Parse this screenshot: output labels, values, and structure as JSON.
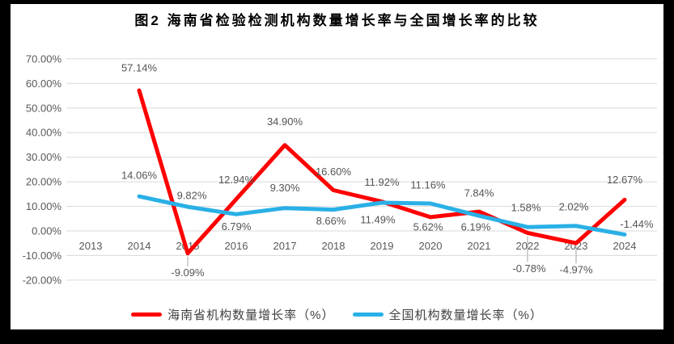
{
  "colors": {
    "hainan_red": "#FE0000",
    "national_blue": "#29B0E6",
    "gridline": "#D9D9D9",
    "axis_text": "#595959",
    "data_label": "#545454",
    "title_text": "#000000",
    "frame": "#000000",
    "background": "#FFFFFF"
  },
  "chart_data": {
    "type": "line",
    "title": "图2 海南省检验检测机构数量增长率与全国增长率的比较",
    "categories": [
      "2013",
      "2014",
      "2015",
      "2016",
      "2017",
      "2018",
      "2019",
      "2020",
      "2021",
      "2022",
      "2023",
      "2024"
    ],
    "y_ticks": [
      "70.00%",
      "60.00%",
      "50.00%",
      "40.00%",
      "30.00%",
      "20.00%",
      "10.00%",
      "0.00%",
      "-10.00%",
      "-20.00%"
    ],
    "ylim": [
      -20,
      70
    ],
    "y_step": 10,
    "grid": true,
    "legend_position": "bottom",
    "series": [
      {
        "name": "海南省机构数量增长率（%）",
        "color": "#FE0000",
        "values": [
          null,
          57.14,
          -9.09,
          12.94,
          34.9,
          16.6,
          11.92,
          5.62,
          7.84,
          -0.78,
          -4.97,
          12.67
        ],
        "labels": [
          null,
          "57.14%",
          "-9.09%",
          "12.94%",
          "34.90%",
          "16.60%",
          "11.92%",
          "5.62%",
          "7.84%",
          "-0.78%",
          "-4.97%",
          "12.67%"
        ],
        "label_offsets": [
          [
            0,
            0
          ],
          [
            0,
            -28
          ],
          [
            0,
            24
          ],
          [
            0,
            -24
          ],
          [
            0,
            -29
          ],
          [
            0,
            -23
          ],
          [
            0,
            -24
          ],
          [
            -3,
            12
          ],
          [
            0,
            -23
          ],
          [
            2,
            44
          ],
          [
            0,
            33
          ],
          [
            0,
            -25
          ]
        ],
        "leader_indices": [
          2,
          9,
          10
        ]
      },
      {
        "name": "全国机构数量增长率（%）",
        "color": "#29B0E6",
        "values": [
          null,
          14.06,
          9.82,
          6.79,
          9.3,
          8.66,
          11.49,
          11.16,
          6.19,
          1.58,
          2.02,
          -1.44
        ],
        "labels": [
          null,
          "14.06%",
          "9.82%",
          "6.79%",
          "9.30%",
          "8.66%",
          "11.49%",
          "11.16%",
          "6.19%",
          "1.58%",
          "2.02%",
          "-1.44%"
        ],
        "label_offsets": [
          [
            0,
            0
          ],
          [
            0,
            -26
          ],
          [
            5,
            -14
          ],
          [
            0,
            15
          ],
          [
            0,
            -25
          ],
          [
            -3,
            14
          ],
          [
            -5,
            21
          ],
          [
            -3,
            -23
          ],
          [
            -4,
            14
          ],
          [
            -2,
            -24
          ],
          [
            -3,
            -24
          ],
          [
            15,
            -13
          ]
        ],
        "leader_indices": []
      }
    ]
  },
  "legend": {
    "items": [
      {
        "label": "海南省机构数量增长率（%）"
      },
      {
        "label": "全国机构数量增长率（%）"
      }
    ]
  }
}
